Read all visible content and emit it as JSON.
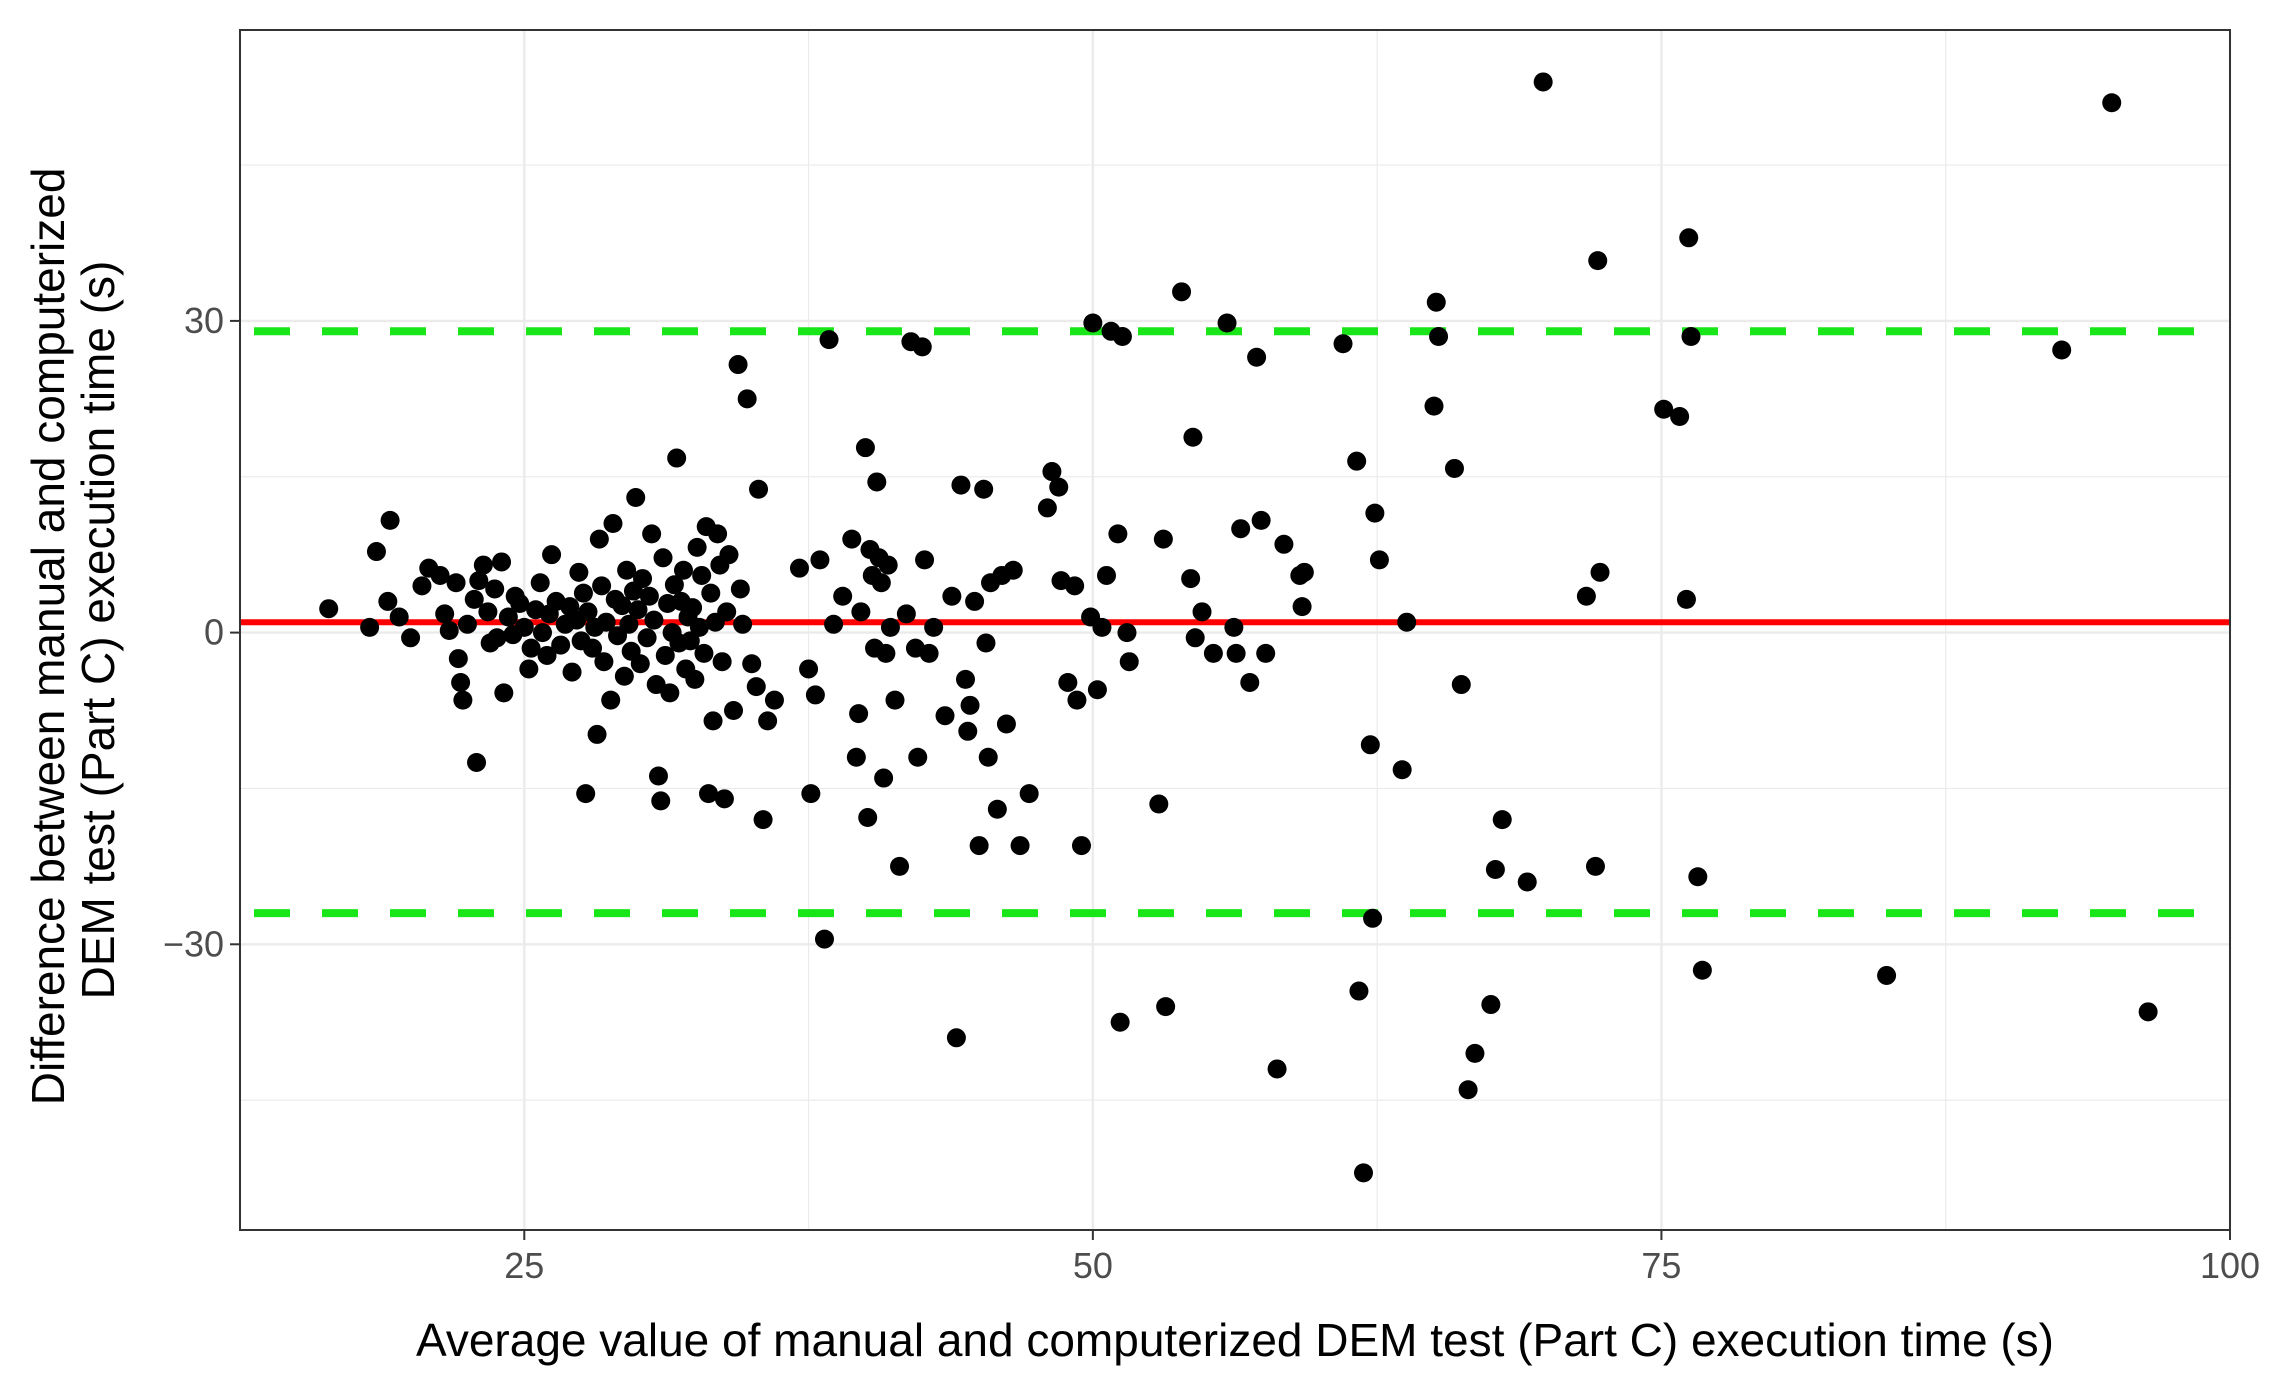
{
  "chart_data": {
    "type": "scatter",
    "xlabel": "Average value of manual and computerized DEM test (Part C) execution time (s)",
    "ylabel_lines": [
      "Difference between manual and computerized",
      "DEM test (Part C) execution time (s)"
    ],
    "xlim": [
      12.5,
      100
    ],
    "ylim": [
      -57.5,
      58
    ],
    "x_ticks": [
      25,
      50,
      75,
      100
    ],
    "y_ticks": [
      -30,
      0,
      30
    ],
    "grid": true,
    "colors": {
      "points": "#000000",
      "mean_line": "#ff0000",
      "limits": "#19e619",
      "grid": "#ebebeb",
      "panel_border": "#333333"
    },
    "reference_lines": {
      "mean": 1,
      "upper_limit": 29,
      "lower_limit": -27
    },
    "points": [
      [
        16.4,
        2.3
      ],
      [
        18.2,
        0.5
      ],
      [
        18.5,
        7.8
      ],
      [
        19.0,
        3.0
      ],
      [
        19.1,
        10.8
      ],
      [
        19.5,
        1.5
      ],
      [
        20.0,
        -0.5
      ],
      [
        20.5,
        4.5
      ],
      [
        20.8,
        6.2
      ],
      [
        21.3,
        5.5
      ],
      [
        21.5,
        1.8
      ],
      [
        21.7,
        0.2
      ],
      [
        22.0,
        4.8
      ],
      [
        22.1,
        -2.5
      ],
      [
        22.2,
        -4.8
      ],
      [
        22.3,
        -6.5
      ],
      [
        22.5,
        0.8
      ],
      [
        22.8,
        3.2
      ],
      [
        22.9,
        -12.5
      ],
      [
        23.0,
        5.0
      ],
      [
        23.2,
        6.5
      ],
      [
        23.4,
        2.0
      ],
      [
        23.5,
        -1.0
      ],
      [
        23.7,
        4.2
      ],
      [
        23.8,
        -0.5
      ],
      [
        24.0,
        6.8
      ],
      [
        24.1,
        -5.8
      ],
      [
        24.3,
        1.5
      ],
      [
        24.5,
        -0.2
      ],
      [
        24.6,
        3.5
      ],
      [
        24.8,
        2.8
      ],
      [
        25.0,
        0.5
      ],
      [
        25.2,
        -3.5
      ],
      [
        25.3,
        -1.5
      ],
      [
        25.5,
        2.2
      ],
      [
        25.7,
        4.8
      ],
      [
        25.8,
        0.0
      ],
      [
        26.0,
        -2.2
      ],
      [
        26.1,
        1.8
      ],
      [
        26.2,
        7.5
      ],
      [
        26.4,
        3.0
      ],
      [
        26.6,
        -1.2
      ],
      [
        26.8,
        0.8
      ],
      [
        27.0,
        2.5
      ],
      [
        27.1,
        -3.8
      ],
      [
        27.3,
        1.2
      ],
      [
        27.4,
        5.8
      ],
      [
        27.5,
        -0.8
      ],
      [
        27.6,
        3.8
      ],
      [
        27.7,
        -15.5
      ],
      [
        27.8,
        2.0
      ],
      [
        28.0,
        -1.5
      ],
      [
        28.1,
        0.5
      ],
      [
        28.2,
        -9.8
      ],
      [
        28.3,
        9.0
      ],
      [
        28.4,
        4.5
      ],
      [
        28.5,
        -2.8
      ],
      [
        28.6,
        1.0
      ],
      [
        28.8,
        -6.5
      ],
      [
        28.9,
        10.5
      ],
      [
        29.0,
        3.2
      ],
      [
        29.1,
        -0.3
      ],
      [
        29.3,
        2.6
      ],
      [
        29.4,
        -4.2
      ],
      [
        29.5,
        6.0
      ],
      [
        29.6,
        0.8
      ],
      [
        29.7,
        -1.8
      ],
      [
        29.8,
        4.0
      ],
      [
        29.9,
        13.0
      ],
      [
        30.0,
        2.2
      ],
      [
        30.1,
        -3.0
      ],
      [
        30.2,
        5.2
      ],
      [
        30.4,
        -0.5
      ],
      [
        30.5,
        3.5
      ],
      [
        30.6,
        9.5
      ],
      [
        30.7,
        1.2
      ],
      [
        30.8,
        -5.0
      ],
      [
        30.9,
        -13.8
      ],
      [
        31.0,
        -16.2
      ],
      [
        31.1,
        7.2
      ],
      [
        31.2,
        -2.2
      ],
      [
        31.3,
        2.8
      ],
      [
        31.4,
        -5.8
      ],
      [
        31.5,
        0.0
      ],
      [
        31.6,
        4.6
      ],
      [
        31.7,
        16.8
      ],
      [
        31.8,
        -1.0
      ],
      [
        31.9,
        3.0
      ],
      [
        32.0,
        6.0
      ],
      [
        32.1,
        -3.5
      ],
      [
        32.2,
        1.5
      ],
      [
        32.3,
        -0.8
      ],
      [
        32.4,
        2.4
      ],
      [
        32.5,
        -4.5
      ],
      [
        32.6,
        8.2
      ],
      [
        32.7,
        0.5
      ],
      [
        32.8,
        5.5
      ],
      [
        32.9,
        -2.0
      ],
      [
        33.0,
        10.2
      ],
      [
        33.1,
        -15.5
      ],
      [
        33.2,
        3.8
      ],
      [
        33.3,
        -8.5
      ],
      [
        33.4,
        1.0
      ],
      [
        33.5,
        9.5
      ],
      [
        33.6,
        6.5
      ],
      [
        33.7,
        -2.8
      ],
      [
        33.8,
        -16.0
      ],
      [
        33.9,
        2.0
      ],
      [
        34.0,
        7.5
      ],
      [
        34.2,
        -7.5
      ],
      [
        34.4,
        25.8
      ],
      [
        34.5,
        4.2
      ],
      [
        34.6,
        0.8
      ],
      [
        34.8,
        22.5
      ],
      [
        35.0,
        -3.0
      ],
      [
        35.2,
        -5.2
      ],
      [
        35.3,
        13.8
      ],
      [
        35.5,
        -18.0
      ],
      [
        35.7,
        -8.5
      ],
      [
        36.0,
        -6.5
      ],
      [
        37.1,
        6.2
      ],
      [
        37.5,
        -3.5
      ],
      [
        37.6,
        -15.5
      ],
      [
        37.8,
        -6.0
      ],
      [
        38.0,
        7.0
      ],
      [
        38.2,
        -29.5
      ],
      [
        38.4,
        28.2
      ],
      [
        38.6,
        0.8
      ],
      [
        39.0,
        3.5
      ],
      [
        39.4,
        9.0
      ],
      [
        39.6,
        -12.0
      ],
      [
        39.7,
        -7.8
      ],
      [
        39.8,
        2.0
      ],
      [
        40.0,
        17.8
      ],
      [
        40.1,
        -17.8
      ],
      [
        40.2,
        8.0
      ],
      [
        40.3,
        5.5
      ],
      [
        40.4,
        -1.5
      ],
      [
        40.5,
        14.5
      ],
      [
        40.6,
        7.2
      ],
      [
        40.7,
        4.8
      ],
      [
        40.8,
        -14.0
      ],
      [
        40.9,
        -2.0
      ],
      [
        41.0,
        6.5
      ],
      [
        41.1,
        0.5
      ],
      [
        41.3,
        -6.5
      ],
      [
        41.5,
        -22.5
      ],
      [
        41.8,
        1.8
      ],
      [
        42.0,
        28.0
      ],
      [
        42.2,
        -1.5
      ],
      [
        42.3,
        -12.0
      ],
      [
        42.5,
        27.5
      ],
      [
        42.6,
        7.0
      ],
      [
        42.8,
        -2.0
      ],
      [
        43.0,
        0.5
      ],
      [
        43.5,
        -8.0
      ],
      [
        43.8,
        3.5
      ],
      [
        44.0,
        -39.0
      ],
      [
        44.2,
        14.2
      ],
      [
        44.4,
        -4.5
      ],
      [
        44.5,
        -9.5
      ],
      [
        44.6,
        -7.0
      ],
      [
        44.8,
        3.0
      ],
      [
        45.0,
        -20.5
      ],
      [
        45.2,
        13.8
      ],
      [
        45.3,
        -1.0
      ],
      [
        45.4,
        -12.0
      ],
      [
        45.5,
        4.8
      ],
      [
        45.8,
        -17.0
      ],
      [
        46.0,
        5.5
      ],
      [
        46.2,
        -8.8
      ],
      [
        46.5,
        6.0
      ],
      [
        46.8,
        -20.5
      ],
      [
        47.2,
        -15.5
      ],
      [
        48.0,
        12.0
      ],
      [
        48.2,
        15.5
      ],
      [
        48.5,
        14.0
      ],
      [
        48.6,
        5.0
      ],
      [
        48.9,
        -4.8
      ],
      [
        49.2,
        4.5
      ],
      [
        49.3,
        -6.5
      ],
      [
        49.5,
        -20.5
      ],
      [
        49.9,
        1.5
      ],
      [
        50.0,
        29.8
      ],
      [
        50.2,
        -5.5
      ],
      [
        50.4,
        0.5
      ],
      [
        50.6,
        5.5
      ],
      [
        50.8,
        29.0
      ],
      [
        51.1,
        9.5
      ],
      [
        51.2,
        -37.5
      ],
      [
        51.3,
        28.5
      ],
      [
        51.5,
        0.0
      ],
      [
        51.6,
        -2.8
      ],
      [
        52.9,
        -16.5
      ],
      [
        53.1,
        9.0
      ],
      [
        53.2,
        -36.0
      ],
      [
        53.9,
        32.8
      ],
      [
        54.3,
        5.2
      ],
      [
        54.4,
        18.8
      ],
      [
        54.5,
        -0.5
      ],
      [
        54.8,
        2.0
      ],
      [
        55.3,
        -2.0
      ],
      [
        55.9,
        29.8
      ],
      [
        56.2,
        0.5
      ],
      [
        56.3,
        -2.0
      ],
      [
        56.5,
        10.0
      ],
      [
        56.9,
        -4.8
      ],
      [
        57.2,
        26.5
      ],
      [
        57.4,
        10.8
      ],
      [
        57.6,
        -2.0
      ],
      [
        58.1,
        -42.0
      ],
      [
        58.4,
        8.5
      ],
      [
        59.1,
        5.5
      ],
      [
        59.2,
        2.5
      ],
      [
        59.3,
        5.8
      ],
      [
        61.0,
        27.8
      ],
      [
        61.6,
        16.5
      ],
      [
        61.7,
        -34.5
      ],
      [
        61.9,
        -52.0
      ],
      [
        62.2,
        -10.8
      ],
      [
        62.3,
        -27.5
      ],
      [
        62.4,
        11.5
      ],
      [
        62.6,
        7.0
      ],
      [
        63.6,
        -13.2
      ],
      [
        63.8,
        1.0
      ],
      [
        65.0,
        21.8
      ],
      [
        65.1,
        31.8
      ],
      [
        65.2,
        28.5
      ],
      [
        65.9,
        15.8
      ],
      [
        66.2,
        -5.0
      ],
      [
        66.5,
        -44.0
      ],
      [
        66.8,
        -40.5
      ],
      [
        67.5,
        -35.8
      ],
      [
        67.7,
        -22.8
      ],
      [
        68.0,
        -18.0
      ],
      [
        69.1,
        -24.0
      ],
      [
        69.8,
        53.0
      ],
      [
        71.7,
        3.5
      ],
      [
        72.1,
        -22.5
      ],
      [
        72.2,
        35.8
      ],
      [
        72.3,
        5.8
      ],
      [
        75.1,
        21.5
      ],
      [
        75.8,
        20.8
      ],
      [
        76.1,
        3.2
      ],
      [
        76.2,
        38.0
      ],
      [
        76.3,
        28.5
      ],
      [
        76.6,
        -23.5
      ],
      [
        76.8,
        -32.5
      ],
      [
        84.9,
        -33.0
      ],
      [
        92.6,
        27.2
      ],
      [
        94.8,
        51.0
      ],
      [
        96.4,
        -36.5
      ]
    ]
  }
}
